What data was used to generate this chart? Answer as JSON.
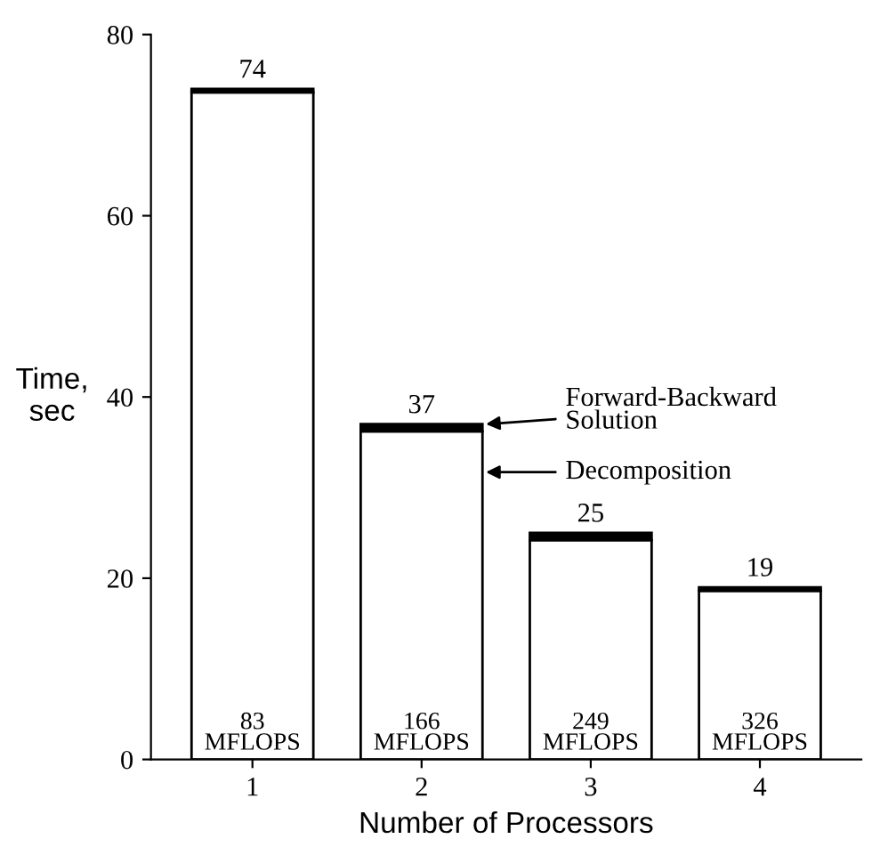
{
  "chart_data": {
    "type": "bar",
    "stacked": true,
    "categories": [
      "1",
      "2",
      "3",
      "4"
    ],
    "series": [
      {
        "name": "Decomposition",
        "color": "#ffffff",
        "values": [
          73.6,
          36.2,
          24.2,
          18.6
        ]
      },
      {
        "name": "Forward-Backward\nSolution",
        "color": "#000000",
        "values": [
          0.4,
          0.8,
          0.8,
          0.4
        ]
      }
    ],
    "totals": [
      "74",
      "37",
      "25",
      "19"
    ],
    "xlabel": "Number of Processors",
    "ylabel": "Time,\nsec",
    "ylim": [
      0,
      80
    ],
    "yticks": [
      0,
      20,
      40,
      60,
      80
    ],
    "grid": false,
    "legend": "right",
    "annotations": [
      {
        "text": "83\nMFLOPS",
        "x": "1",
        "y": 0
      },
      {
        "text": "166\nMFLOPS",
        "x": "2",
        "y": 0
      },
      {
        "text": "249\nMFLOPS",
        "x": "3",
        "y": 0
      },
      {
        "text": "326\nMFLOPS",
        "x": "4",
        "y": 0
      }
    ]
  }
}
